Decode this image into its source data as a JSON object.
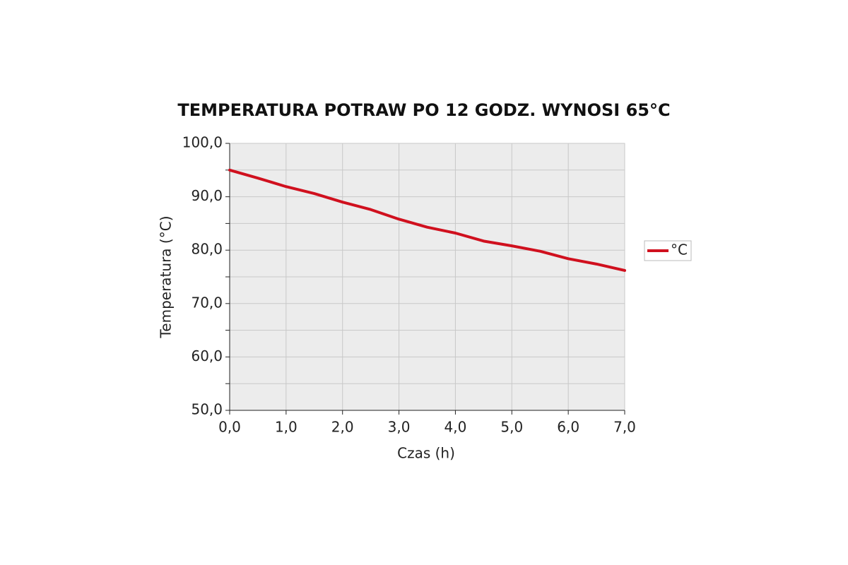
{
  "chart_data": {
    "type": "line",
    "title": "TEMPERATURA POTRAW PO 12 GODZ. WYNOSI 65°C",
    "x_label": "Czas (h)",
    "y_label": "Temperatura (°C)",
    "x": [
      0,
      0.5,
      1,
      1.5,
      2,
      2.5,
      3,
      3.5,
      4,
      4.5,
      5,
      5.5,
      6,
      6.5,
      7
    ],
    "series": [
      {
        "name": "°C",
        "color": "#d0101e",
        "values": [
          95.0,
          93.5,
          91.9,
          90.6,
          89.0,
          87.6,
          85.8,
          84.3,
          83.2,
          81.7,
          80.8,
          79.8,
          78.4,
          77.4,
          76.2
        ]
      }
    ],
    "xlim": [
      0,
      7
    ],
    "xticks": [
      {
        "value": 0,
        "label": "0,0"
      },
      {
        "value": 1,
        "label": "1,0"
      },
      {
        "value": 2,
        "label": "2,0"
      },
      {
        "value": 3,
        "label": "3,0"
      },
      {
        "value": 4,
        "label": "4,0"
      },
      {
        "value": 5,
        "label": "5,0"
      },
      {
        "value": 6,
        "label": "6,0"
      },
      {
        "value": 7,
        "label": "7,0"
      }
    ],
    "ylim": [
      50,
      100
    ],
    "yticks": [
      {
        "value": 50,
        "label": "50,0"
      },
      {
        "value": 60,
        "label": "60,0"
      },
      {
        "value": 70,
        "label": "70,0"
      },
      {
        "value": 80,
        "label": "80,0"
      },
      {
        "value": 90,
        "label": "90,0"
      },
      {
        "value": 100,
        "label": "100,0"
      }
    ],
    "yminorticks": [
      55,
      65,
      75,
      85,
      95
    ],
    "grid": true,
    "legend": "right"
  }
}
